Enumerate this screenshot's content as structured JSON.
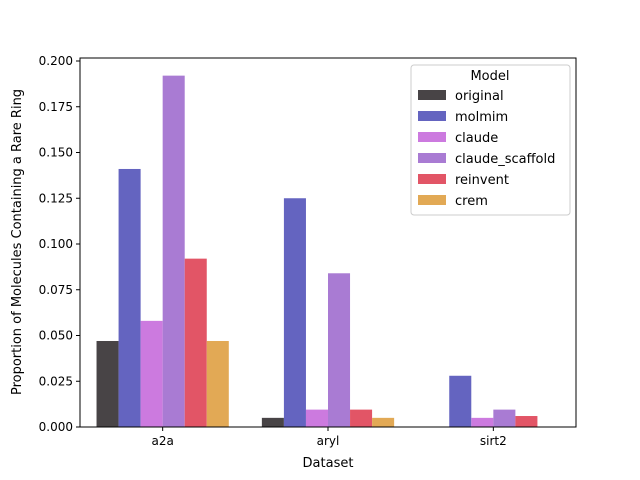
{
  "chart_data": {
    "type": "bar",
    "title": "",
    "xlabel": "Dataset",
    "ylabel": "Proportion of Molecules Containing a Rare Ring",
    "categories": [
      "a2a",
      "aryl",
      "sirt2"
    ],
    "ylim": [
      0,
      0.2
    ],
    "yticks": [
      "0.000",
      "0.025",
      "0.050",
      "0.075",
      "0.100",
      "0.125",
      "0.150",
      "0.175",
      "0.200"
    ],
    "ytick_values": [
      0,
      0.025,
      0.05,
      0.075,
      0.1,
      0.125,
      0.15,
      0.175,
      0.2
    ],
    "legend": {
      "title": "Model",
      "position": "top-right"
    },
    "series": [
      {
        "name": "original",
        "color": "#484446",
        "values": [
          0.047,
          0.005,
          0.0
        ]
      },
      {
        "name": "molmim",
        "color": "#6464c0",
        "values": [
          0.141,
          0.125,
          0.028
        ]
      },
      {
        "name": "claude",
        "color": "#cc7adf",
        "values": [
          0.058,
          0.0095,
          0.005
        ]
      },
      {
        "name": "claude_scaffold",
        "color": "#a97bd3",
        "values": [
          0.192,
          0.084,
          0.0095
        ]
      },
      {
        "name": "reinvent",
        "color": "#e25566",
        "values": [
          0.092,
          0.0095,
          0.006
        ]
      },
      {
        "name": "crem",
        "color": "#e2a955",
        "values": [
          0.047,
          0.005,
          0.0
        ]
      }
    ]
  }
}
